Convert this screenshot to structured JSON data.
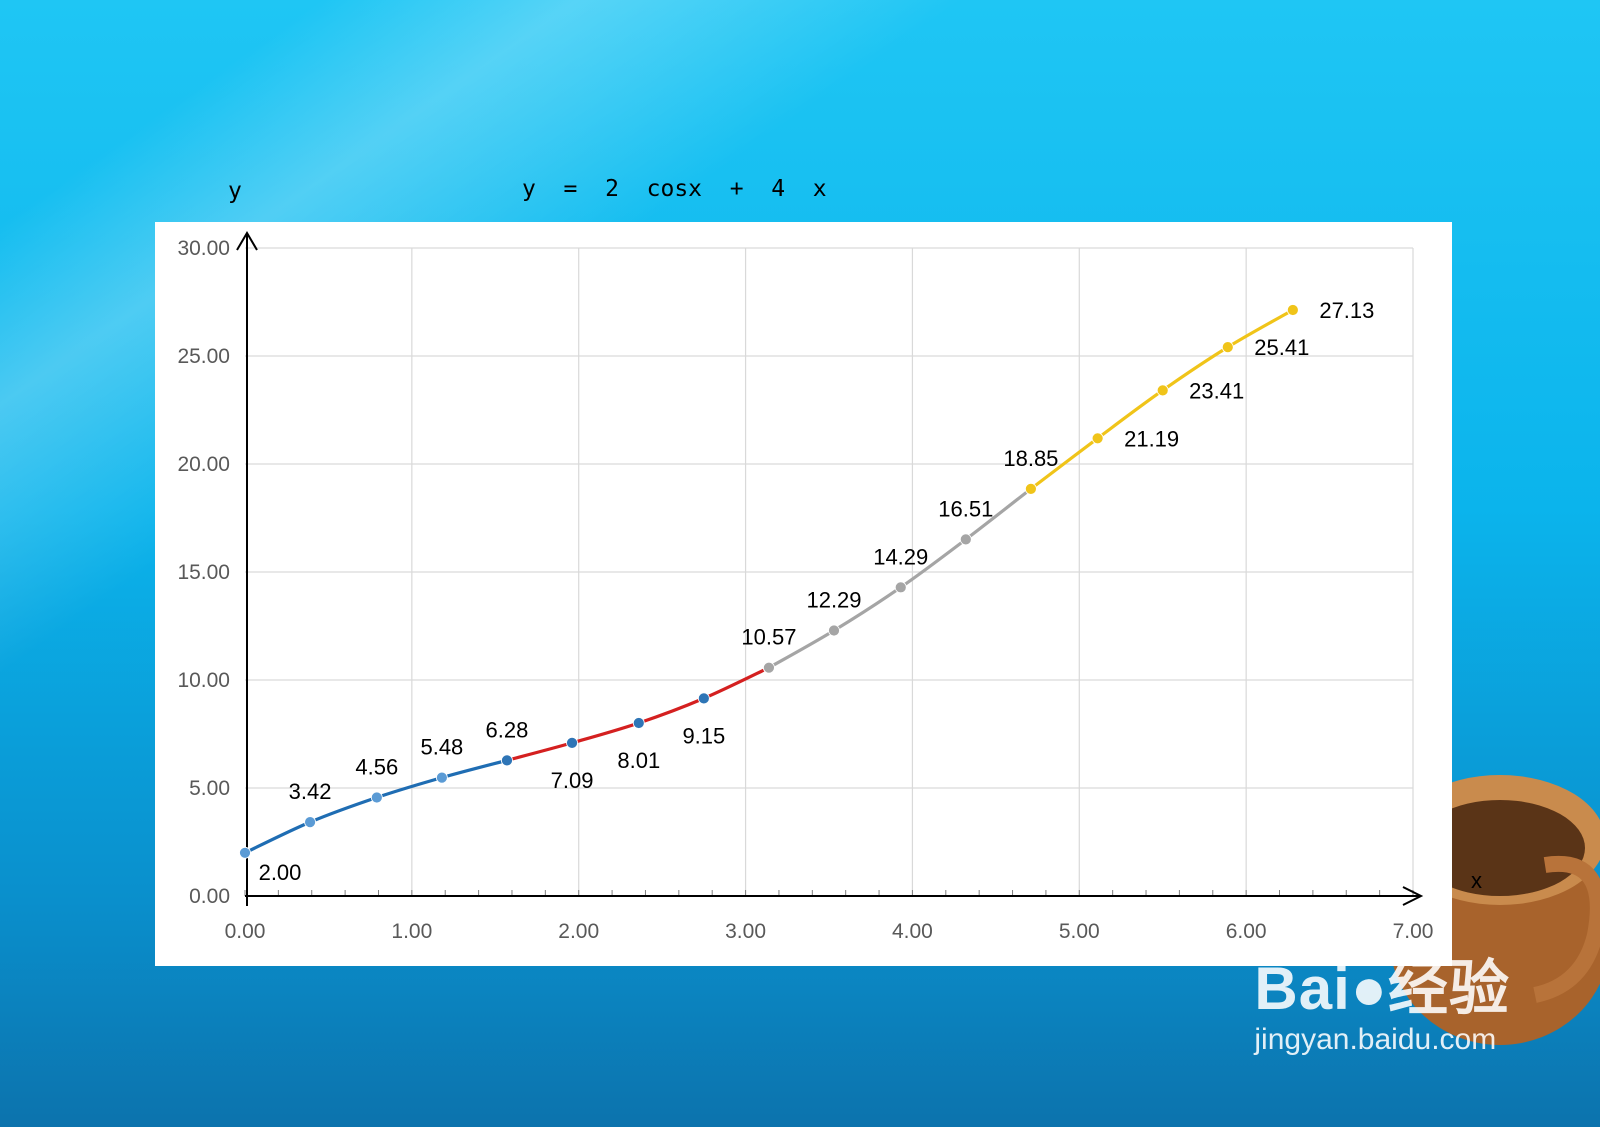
{
  "title_y": "y",
  "title_formula": "y  =  2  cosx  +  4  x",
  "x_axis_letter": "x",
  "watermark": {
    "brand": "Bai●经验",
    "url": "jingyan.baidu.com"
  },
  "chart_data": {
    "type": "line",
    "title": "y = 2 cosx + 4 x",
    "xlabel": "x",
    "ylabel": "y",
    "xlim": [
      0,
      7
    ],
    "ylim": [
      0,
      30
    ],
    "x_ticks": [
      "0.00",
      "1.00",
      "2.00",
      "3.00",
      "4.00",
      "5.00",
      "6.00",
      "7.00"
    ],
    "y_ticks": [
      "0.00",
      "5.00",
      "10.00",
      "15.00",
      "20.00",
      "25.00",
      "30.00"
    ],
    "grid": true,
    "series": [
      {
        "color": "#1f6db3",
        "marker_color": "#5b9bd5",
        "x": [
          0.0,
          0.39,
          0.79,
          1.18,
          1.57
        ],
        "y": [
          2.0,
          3.42,
          4.56,
          5.48,
          6.28
        ],
        "labels": [
          "2.00",
          "3.42",
          "4.56",
          "5.48",
          "6.28"
        ]
      },
      {
        "color": "#d42020",
        "marker_color": "#2e75b6",
        "x": [
          1.57,
          1.96,
          2.36,
          2.75,
          3.14
        ],
        "y": [
          6.28,
          7.09,
          8.01,
          9.15,
          10.57
        ],
        "labels": [
          "",
          "7.09",
          "8.01",
          "9.15",
          ""
        ]
      },
      {
        "color": "#a5a5a5",
        "marker_color": "#a5a5a5",
        "x": [
          3.14,
          3.53,
          3.93,
          4.32,
          4.71
        ],
        "y": [
          10.57,
          12.29,
          14.29,
          16.51,
          18.85
        ],
        "labels": [
          "10.57",
          "12.29",
          "14.29",
          "16.51",
          ""
        ]
      },
      {
        "color": "#f0c419",
        "marker_color": "#f0c419",
        "x": [
          4.71,
          5.11,
          5.5,
          5.89,
          6.28
        ],
        "y": [
          18.85,
          21.19,
          23.41,
          25.41,
          27.13
        ],
        "labels": [
          "18.85",
          "21.19",
          "23.41",
          "25.41",
          "27.13"
        ]
      }
    ]
  }
}
